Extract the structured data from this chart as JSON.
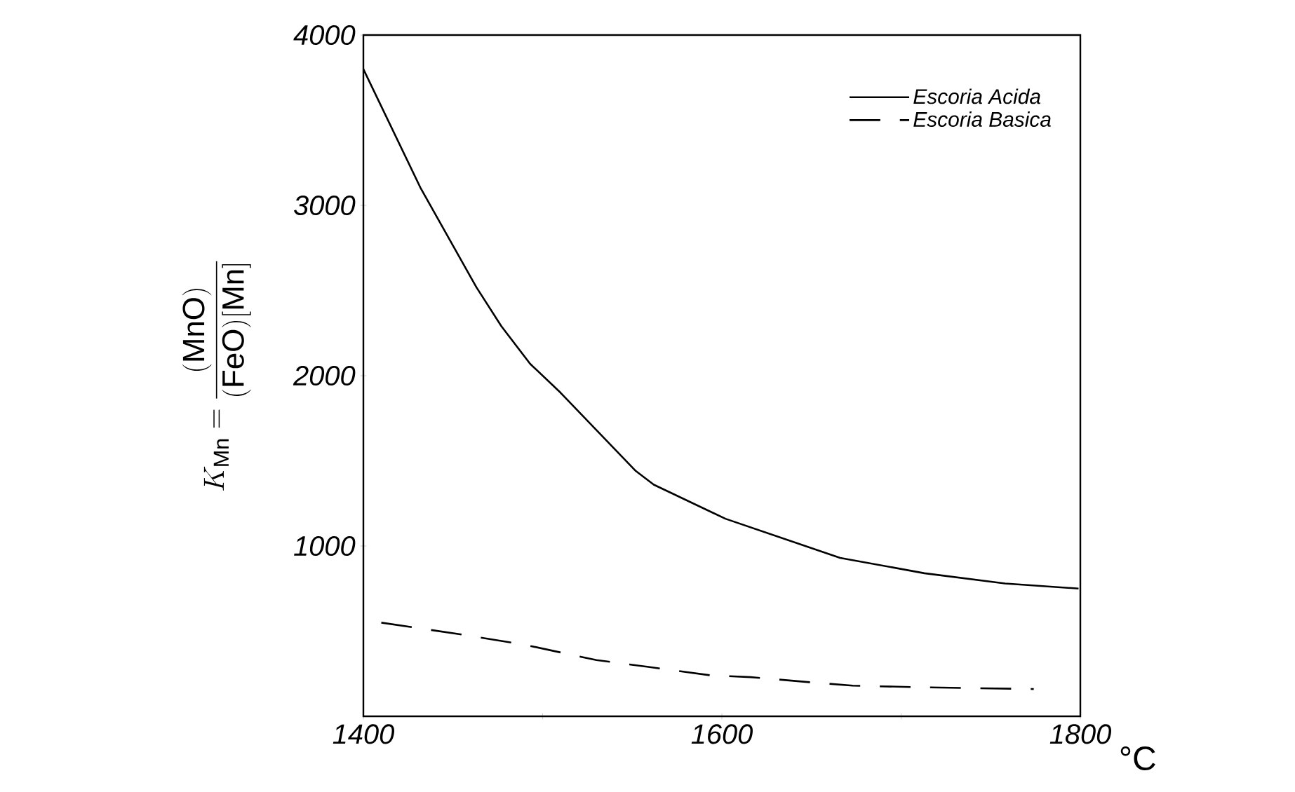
{
  "chart_data": {
    "type": "line",
    "xlabel": "°C",
    "ylabel": "K_{\\mathrm{Mn}} = \\frac{(\\mathrm{MnO})}{(\\mathrm{FeO})[\\mathrm{Mn}]}",
    "xlim": [
      1400,
      1800
    ],
    "xticks": [
      1400,
      {
        "value": 1500,
        "label": null
      },
      1600,
      {
        "value": 1700,
        "label": null
      },
      1800
    ],
    "ylim": [
      0,
      4000
    ],
    "yticks": [
      1000,
      2000,
      3000,
      4000
    ],
    "grid": false,
    "legend": "top right",
    "marker": "none",
    "series": [
      {
        "name": "Escoria Acida",
        "color": "#000000",
        "line_style": "solid",
        "x": [
          1400,
          1432,
          1463,
          1477,
          1493,
          1510,
          1552,
          1562,
          1602,
          1666,
          1713,
          1758,
          1799
        ],
        "values": [
          3800,
          3100,
          2520,
          2290,
          2070,
          1900,
          1440,
          1360,
          1160,
          930,
          840,
          780,
          750
        ]
      },
      {
        "name": "Escoria Basica",
        "color": "#000000",
        "line_style": "dashed",
        "x": [
          1410,
          1455,
          1490,
          1530,
          1559,
          1594,
          1616,
          1649,
          1673,
          1713,
          1774
        ],
        "values": [
          550,
          480,
          420,
          330,
          290,
          240,
          230,
          200,
          180,
          170,
          160
        ]
      }
    ]
  }
}
